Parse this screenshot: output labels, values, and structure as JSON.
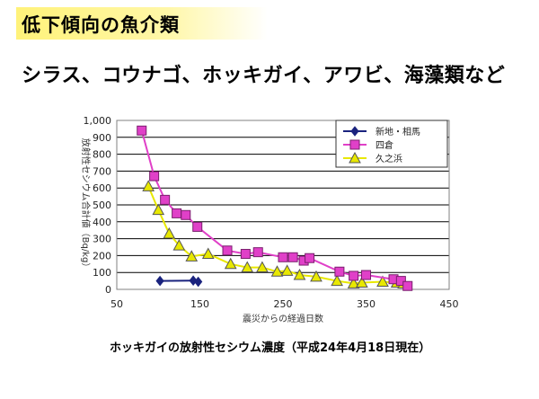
{
  "slide": {
    "title": "低下傾向の魚介類",
    "subtitle": "シラス、コウナゴ、ホッキガイ、アワビ、海藻類など",
    "caption": "ホッキガイの放射性セシウム濃度（平成24年4月18日現在）"
  },
  "chart_data": {
    "type": "line",
    "title": "",
    "xlabel": "震災からの経過日数",
    "ylabel": "放射性セシウム合計値（Bq/kg）",
    "xlim": [
      50,
      450
    ],
    "ylim": [
      0,
      1000
    ],
    "x_ticks": [
      "50",
      "150",
      "250",
      "350",
      "450"
    ],
    "y_ticks": [
      "0",
      "100",
      "200",
      "300",
      "400",
      "500",
      "600",
      "700",
      "800",
      "900",
      "1,000"
    ],
    "grid": true,
    "legend_position": "top-right",
    "series": [
      {
        "name": "新地・相馬",
        "color": "#1a237e",
        "marker": "diamond",
        "points": [
          [
            102,
            50
          ],
          [
            142,
            52
          ],
          [
            148,
            45
          ]
        ]
      },
      {
        "name": "四倉",
        "color": "#e040c8",
        "marker": "square",
        "points": [
          [
            80,
            940
          ],
          [
            95,
            670
          ],
          [
            108,
            530
          ],
          [
            122,
            450
          ],
          [
            133,
            440
          ],
          [
            147,
            370
          ],
          [
            183,
            230
          ],
          [
            205,
            210
          ],
          [
            220,
            220
          ],
          [
            250,
            190
          ],
          [
            262,
            190
          ],
          [
            275,
            170
          ],
          [
            282,
            185
          ],
          [
            318,
            105
          ],
          [
            335,
            80
          ],
          [
            350,
            85
          ],
          [
            383,
            60
          ],
          [
            392,
            50
          ],
          [
            400,
            20
          ]
        ]
      },
      {
        "name": "久之浜",
        "color": "#e8e800",
        "marker": "triangle",
        "points": [
          [
            88,
            610
          ],
          [
            100,
            470
          ],
          [
            113,
            330
          ],
          [
            125,
            260
          ],
          [
            140,
            195
          ],
          [
            160,
            210
          ],
          [
            187,
            150
          ],
          [
            207,
            130
          ],
          [
            225,
            130
          ],
          [
            243,
            105
          ],
          [
            255,
            110
          ],
          [
            270,
            85
          ],
          [
            290,
            75
          ],
          [
            315,
            50
          ],
          [
            335,
            35
          ],
          [
            345,
            40
          ],
          [
            370,
            45
          ],
          [
            387,
            40
          ],
          [
            395,
            35
          ]
        ]
      }
    ]
  }
}
